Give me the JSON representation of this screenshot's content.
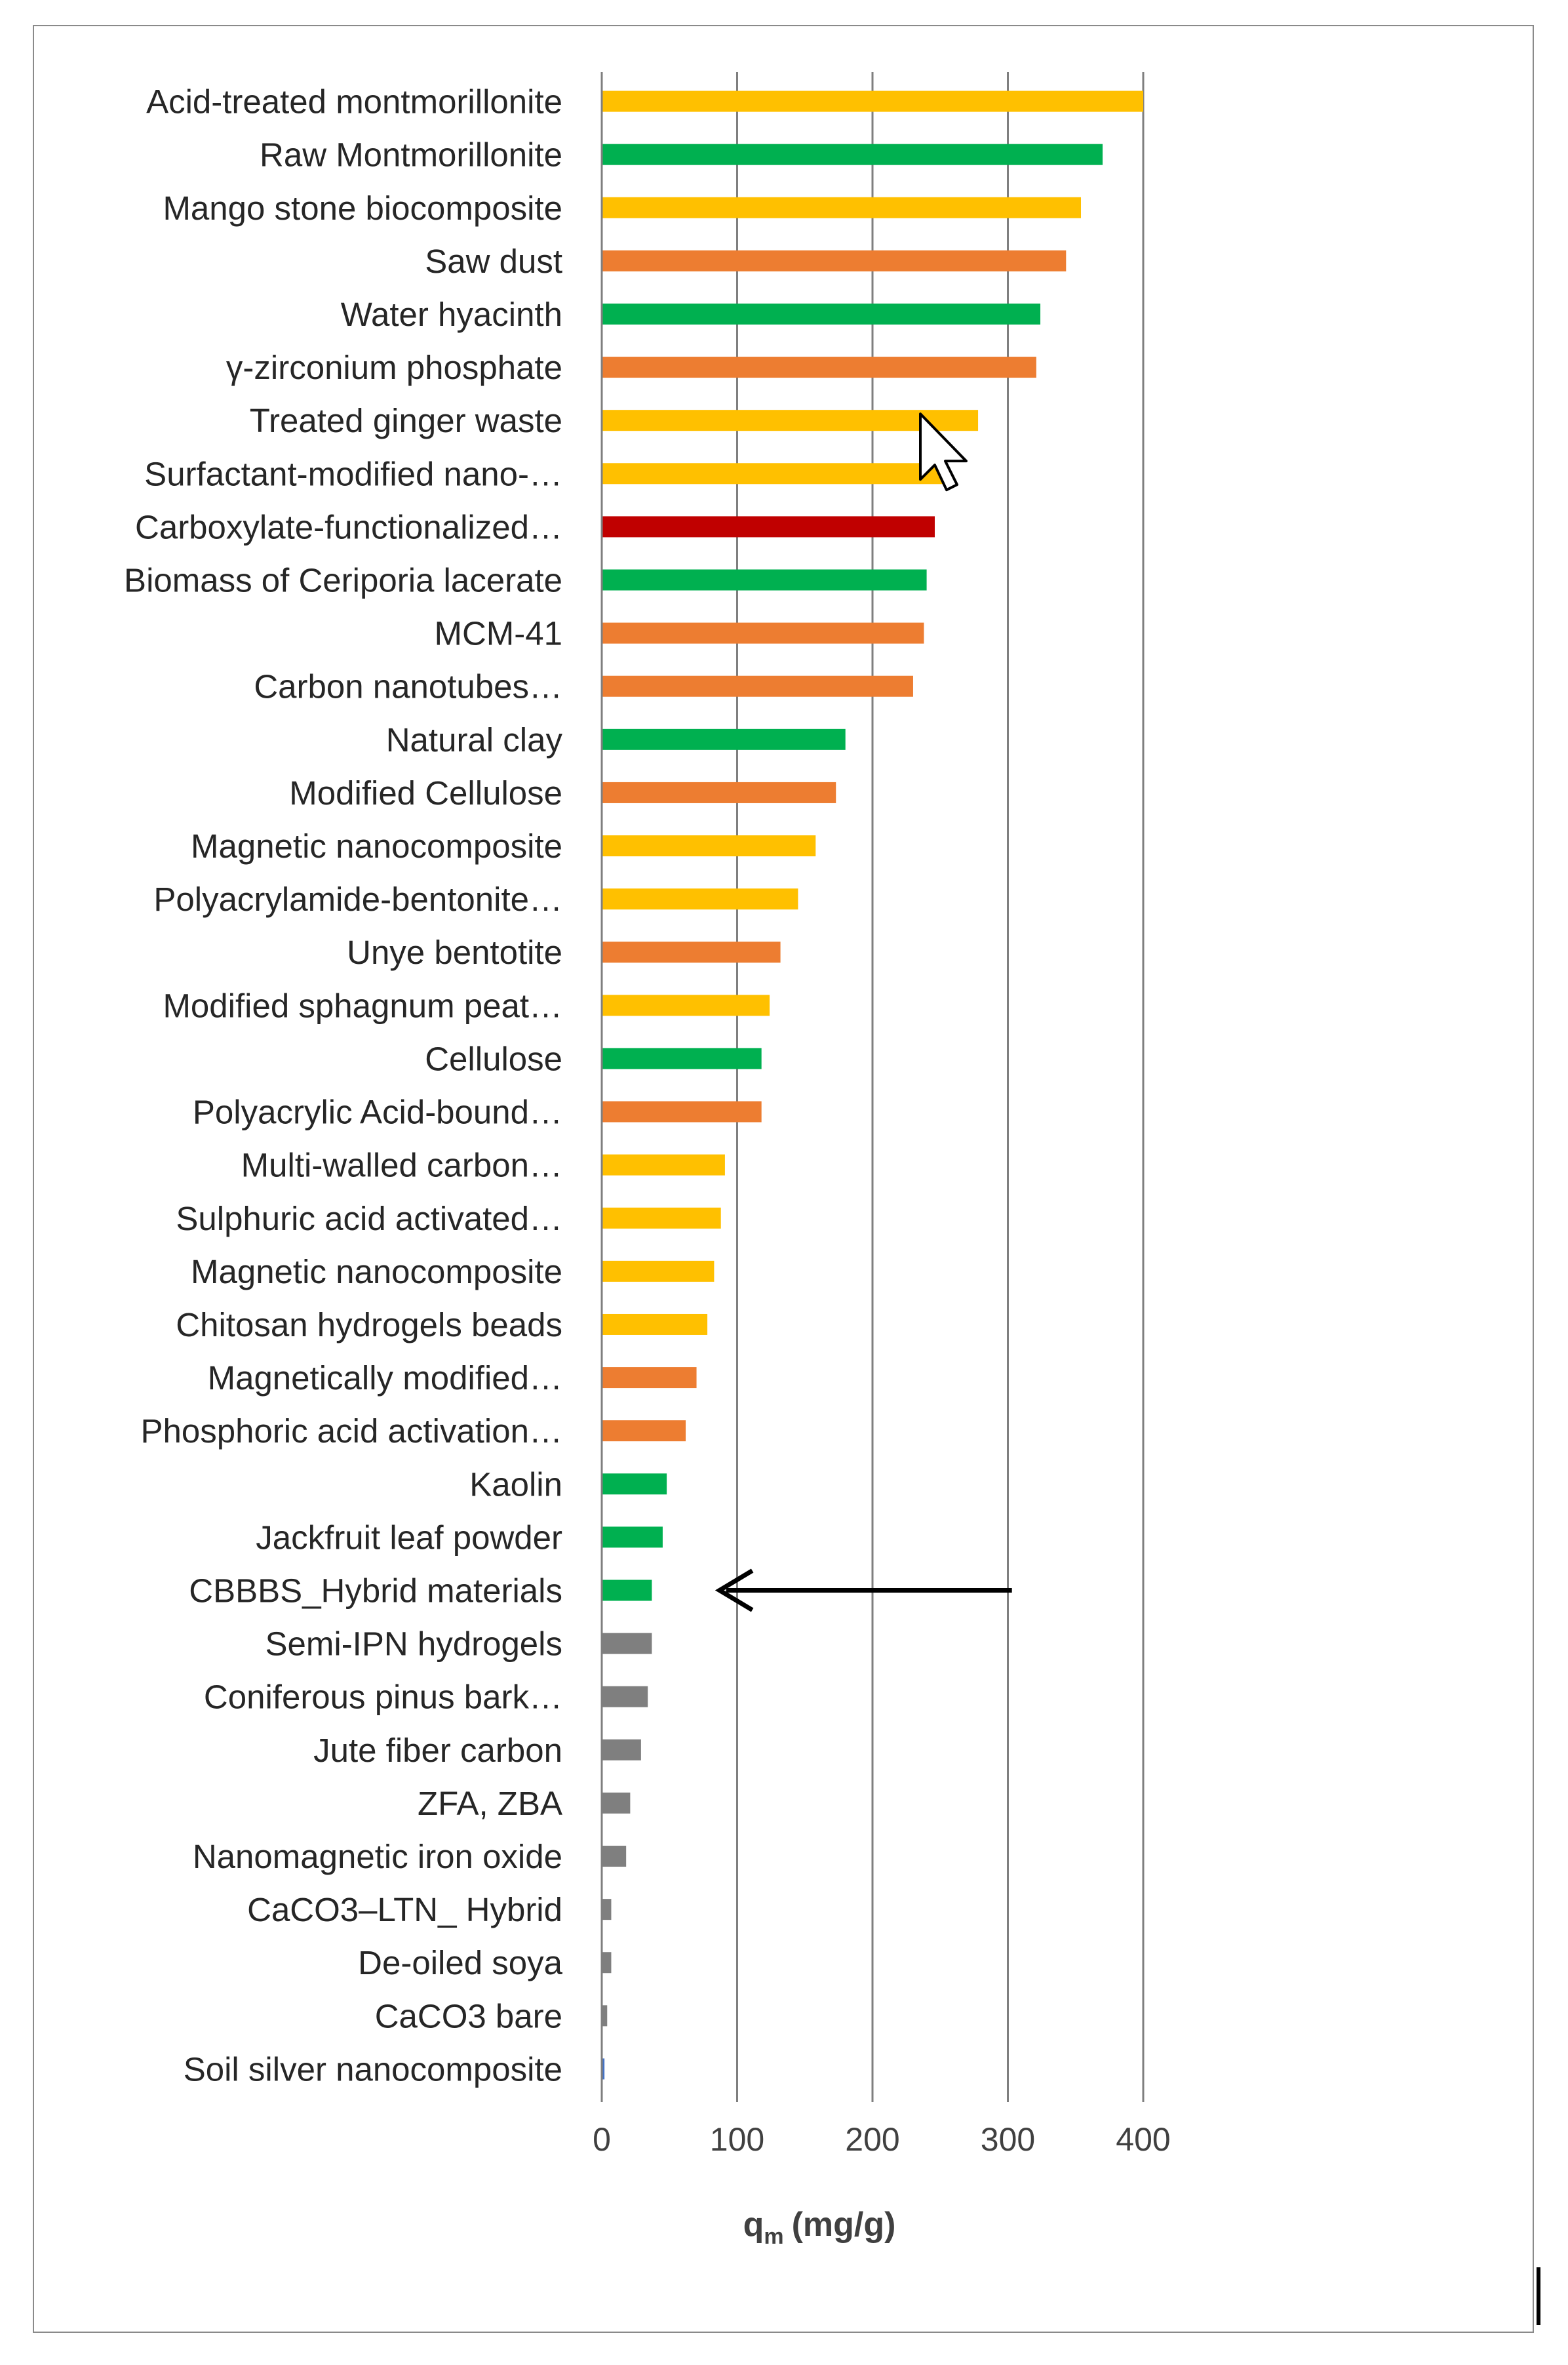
{
  "chart_data": {
    "type": "bar",
    "orientation": "horizontal",
    "title": "",
    "xlabel": "q",
    "xlabel_subscript": "m",
    "xlabel_unit": "(mg/g)",
    "xlim": [
      0,
      400
    ],
    "xticks": [
      0,
      100,
      200,
      300,
      400
    ],
    "grid": true,
    "colors": {
      "yellow": "#FFC000",
      "green": "#00B050",
      "orange": "#ED7D31",
      "red": "#C00000",
      "grey": "#7F7F7F",
      "blue": "#4472C4"
    },
    "bars": [
      {
        "label": "Acid-treated montmorillonite",
        "value": 400,
        "color": "yellow"
      },
      {
        "label": "Raw Montmorillonite",
        "value": 370,
        "color": "green"
      },
      {
        "label": "Mango stone biocomposite",
        "value": 354,
        "color": "yellow"
      },
      {
        "label": "Saw dust",
        "value": 343,
        "color": "orange"
      },
      {
        "label": "Water hyacinth",
        "value": 324,
        "color": "green"
      },
      {
        "label": "γ-zirconium phosphate",
        "value": 321,
        "color": "orange"
      },
      {
        "label": "Treated ginger waste",
        "value": 278,
        "color": "yellow"
      },
      {
        "label": "Surfactant-modified nano-…",
        "value": 255,
        "color": "yellow"
      },
      {
        "label": "Carboxylate-functionalized…",
        "value": 246,
        "color": "red"
      },
      {
        "label": "Biomass of Ceriporia lacerate",
        "value": 240,
        "color": "green"
      },
      {
        "label": "MCM-41",
        "value": 238,
        "color": "orange"
      },
      {
        "label": "Carbon nanotubes…",
        "value": 230,
        "color": "orange"
      },
      {
        "label": "Natural clay",
        "value": 180,
        "color": "green"
      },
      {
        "label": "Modified Cellulose",
        "value": 173,
        "color": "orange"
      },
      {
        "label": "Magnetic nanocomposite",
        "value": 158,
        "color": "yellow"
      },
      {
        "label": "Polyacrylamide-bentonite…",
        "value": 145,
        "color": "yellow"
      },
      {
        "label": "Unye bentotite",
        "value": 132,
        "color": "orange"
      },
      {
        "label": "Modified sphagnum peat…",
        "value": 124,
        "color": "yellow"
      },
      {
        "label": "Cellulose",
        "value": 118,
        "color": "green"
      },
      {
        "label": "Polyacrylic Acid-bound…",
        "value": 118,
        "color": "orange"
      },
      {
        "label": "Multi-walled carbon…",
        "value": 91,
        "color": "yellow"
      },
      {
        "label": "Sulphuric acid activated…",
        "value": 88,
        "color": "yellow"
      },
      {
        "label": "Magnetic nanocomposite",
        "value": 83,
        "color": "yellow"
      },
      {
        "label": "Chitosan hydrogels beads",
        "value": 78,
        "color": "yellow"
      },
      {
        "label": "Magnetically modified…",
        "value": 70,
        "color": "orange"
      },
      {
        "label": "Phosphoric acid activation…",
        "value": 62,
        "color": "orange"
      },
      {
        "label": "Kaolin",
        "value": 48,
        "color": "green"
      },
      {
        "label": "Jackfruit leaf powder",
        "value": 45,
        "color": "green"
      },
      {
        "label": "CBBBS_Hybrid materials",
        "value": 37,
        "color": "green"
      },
      {
        "label": "Semi-IPN hydrogels",
        "value": 37,
        "color": "grey"
      },
      {
        "label": "Coniferous pinus bark…",
        "value": 34,
        "color": "grey"
      },
      {
        "label": "Jute fiber carbon",
        "value": 29,
        "color": "grey"
      },
      {
        "label": "ZFA, ZBA",
        "value": 21,
        "color": "grey"
      },
      {
        "label": "Nanomagnetic iron oxide",
        "value": 18,
        "color": "grey"
      },
      {
        "label": "CaCO3–LTN_ Hybrid",
        "value": 7,
        "color": "grey"
      },
      {
        "label": "De-oiled soya",
        "value": 7,
        "color": "grey"
      },
      {
        "label": "CaCO3 bare",
        "value": 4,
        "color": "grey"
      },
      {
        "label": "Soil silver nanocomposite",
        "value": 2,
        "color": "blue"
      }
    ],
    "annotations": [
      {
        "type": "arrow",
        "points_to": "CBBBS_Hybrid materials",
        "from_x": 303,
        "to_x": 87
      },
      {
        "type": "mouse-cursor",
        "near": "Treated ginger waste",
        "x": 240
      }
    ]
  }
}
